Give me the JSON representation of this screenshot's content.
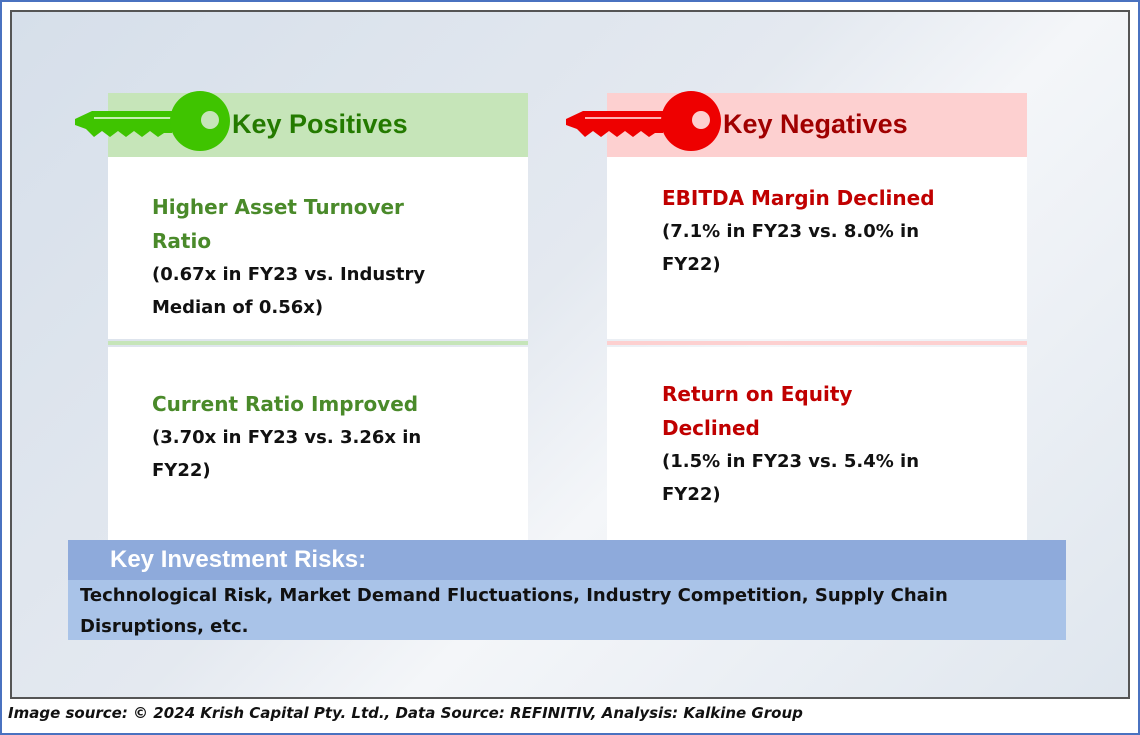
{
  "positives": {
    "heading": "Key Positives",
    "items": [
      {
        "title": "Higher Asset Turnover Ratio",
        "detail": "(0.67x in FY23 vs. Industry Median of 0.56x)"
      },
      {
        "title": "Current Ratio Improved",
        "detail": "(3.70x in FY23 vs. 3.26x in FY22)"
      }
    ]
  },
  "negatives": {
    "heading": "Key Negatives",
    "items": [
      {
        "title": "EBITDA Margin Declined",
        "detail": "(7.1% in FY23 vs. 8.0% in FY22)"
      },
      {
        "title": "Return on Equity Declined",
        "detail": "(1.5% in FY23 vs. 5.4% in FY22)"
      }
    ]
  },
  "risks": {
    "heading": "Key Investment Risks:",
    "text": "Technological Risk, Market Demand Fluctuations, Industry Competition, Supply Chain Disruptions, etc."
  },
  "source": "Image source: © 2024 Krish Capital Pty. Ltd., Data Source: REFINITIV, Analysis: Kalkine Group",
  "colors": {
    "positive": "#4a8a2a",
    "positive_key": "#3fc400",
    "negative": "#c00000",
    "negative_key": "#ee0000"
  }
}
